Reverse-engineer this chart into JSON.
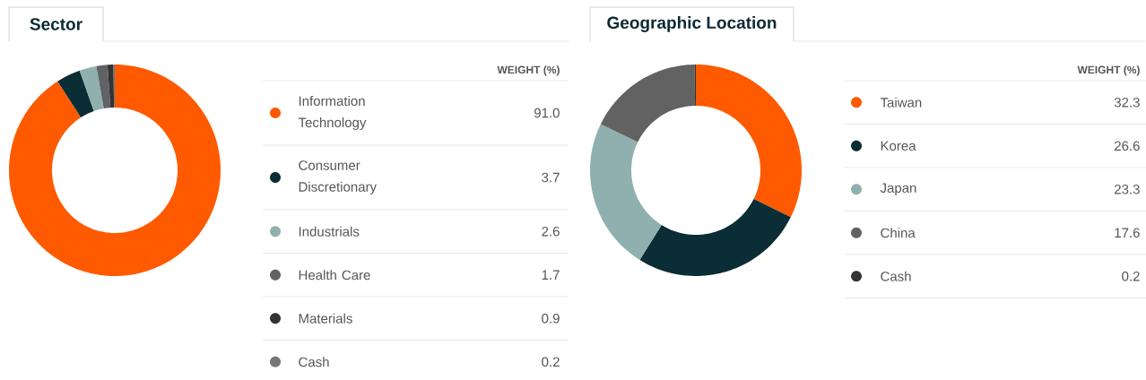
{
  "chart_data": [
    {
      "type": "donut",
      "title": "Sector",
      "legend_title": "WEIGHT (%)",
      "categories": [
        "Information Technology",
        "Consumer Discretionary",
        "Industrials",
        "Health Care",
        "Materials",
        "Cash"
      ],
      "values": [
        91.0,
        3.7,
        2.6,
        1.7,
        0.9,
        0.2
      ],
      "value_labels": [
        "91.0",
        "3.7",
        "2.6",
        "1.7",
        "0.9",
        "0.2"
      ],
      "colors": [
        "#ff5a00",
        "#0b2d35",
        "#8fb0ae",
        "#616264",
        "#333333",
        "#767676"
      ],
      "legend": "right"
    },
    {
      "type": "donut",
      "title": "Geographic Location",
      "legend_title": "WEIGHT (%)",
      "categories": [
        "Taiwan",
        "Korea",
        "Japan",
        "China",
        "Cash"
      ],
      "values": [
        32.3,
        26.6,
        23.3,
        17.6,
        0.2
      ],
      "value_labels": [
        "32.3",
        "26.6",
        "23.3",
        "17.6",
        "0.2"
      ],
      "colors": [
        "#ff5a00",
        "#0b2d35",
        "#8fb0ae",
        "#626262",
        "#333333"
      ],
      "legend": "right"
    }
  ]
}
